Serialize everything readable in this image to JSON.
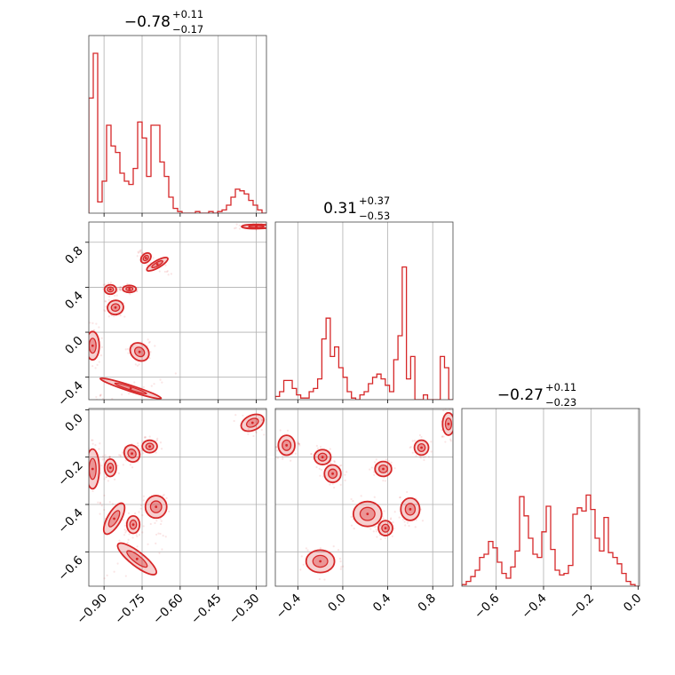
{
  "chart_data": {
    "type": "corner",
    "color": "#d62728",
    "grid": true,
    "parameters": [
      {
        "title": "−0.78",
        "plus": "+0.11",
        "minus": "−0.17",
        "range": [
          -0.96,
          -0.26
        ],
        "ticks": [
          -0.9,
          -0.75,
          -0.6,
          -0.45,
          -0.3
        ],
        "tick_labels": [
          "−0.90",
          "−0.75",
          "−0.60",
          "−0.45",
          "−0.30"
        ]
      },
      {
        "title": "0.31",
        "plus": "+0.37",
        "minus": "−0.53",
        "range": [
          -0.6,
          0.98
        ],
        "ticks": [
          -0.4,
          0.0,
          0.4,
          0.8
        ],
        "tick_labels": [
          "−0.4",
          "0.0",
          "0.4",
          "0.8"
        ]
      },
      {
        "title": "−0.27",
        "plus": "+0.11",
        "minus": "−0.23",
        "range": [
          -0.745,
          0.005
        ],
        "ticks": [
          -0.6,
          -0.4,
          -0.2,
          0.0
        ],
        "tick_labels": [
          "−0.6",
          "−0.4",
          "−0.2",
          "0.0"
        ]
      }
    ],
    "histograms": [
      [
        0.72,
        1.0,
        0.07,
        0.2,
        0.55,
        0.42,
        0.38,
        0.25,
        0.2,
        0.18,
        0.28,
        0.57,
        0.47,
        0.23,
        0.55,
        0.55,
        0.32,
        0.23,
        0.1,
        0.03,
        0.01,
        0.0,
        0.0,
        0.0,
        0.01,
        0.0,
        0.0,
        0.01,
        0.0,
        0.01,
        0.02,
        0.05,
        0.1,
        0.15,
        0.14,
        0.12,
        0.08,
        0.05,
        0.02,
        0.0
      ],
      [
        0.02,
        0.05,
        0.12,
        0.12,
        0.07,
        0.03,
        0.01,
        0.01,
        0.05,
        0.07,
        0.13,
        0.38,
        0.51,
        0.27,
        0.33,
        0.2,
        0.14,
        0.05,
        0.01,
        0.0,
        0.03,
        0.05,
        0.1,
        0.14,
        0.16,
        0.13,
        0.09,
        0.05,
        0.25,
        0.4,
        0.83,
        0.13,
        0.27,
        0.0,
        0.0,
        0.03,
        0.0,
        0.0,
        0.0,
        0.27,
        0.2,
        0.0
      ],
      [
        0.01,
        0.03,
        0.06,
        0.1,
        0.18,
        0.2,
        0.28,
        0.24,
        0.15,
        0.08,
        0.05,
        0.12,
        0.22,
        0.56,
        0.44,
        0.3,
        0.2,
        0.18,
        0.34,
        0.5,
        0.23,
        0.1,
        0.07,
        0.08,
        0.13,
        0.45,
        0.49,
        0.47,
        0.57,
        0.48,
        0.3,
        0.22,
        0.43,
        0.21,
        0.18,
        0.14,
        0.08,
        0.03,
        0.01,
        0.0
      ]
    ],
    "pairs": [
      {
        "x": 0,
        "y": 1,
        "blobs": [
          {
            "c": [
              -0.735,
              0.66
            ],
            "r": [
              0.022,
              0.035
            ],
            "rot": 45
          },
          {
            "c": [
              -0.69,
              0.605
            ],
            "r": [
              0.045,
              0.03
            ],
            "rot": 30
          },
          {
            "c": [
              -0.875,
              0.38
            ],
            "r": [
              0.022,
              0.04
            ],
            "rot": 0
          },
          {
            "c": [
              -0.8,
              0.385
            ],
            "r": [
              0.025,
              0.03
            ],
            "rot": 0
          },
          {
            "c": [
              -0.855,
              0.22
            ],
            "r": [
              0.03,
              0.06
            ],
            "rot": 10
          },
          {
            "c": [
              -0.945,
              -0.12
            ],
            "r": [
              0.025,
              0.12
            ],
            "rot": 0
          },
          {
            "c": [
              -0.76,
              -0.175
            ],
            "r": [
              0.038,
              0.07
            ],
            "rot": -40
          },
          {
            "c": [
              -0.795,
              -0.5
            ],
            "r": [
              0.12,
              0.025
            ],
            "rot": -18
          },
          {
            "c": [
              -0.3,
              0.94
            ],
            "r": [
              0.055,
              0.018
            ],
            "rot": 0
          }
        ]
      },
      {
        "x": 0,
        "y": 2,
        "blobs": [
          {
            "c": [
              -0.315,
              -0.055
            ],
            "r": [
              0.045,
              0.03
            ],
            "rot": 25
          },
          {
            "c": [
              -0.79,
              -0.185
            ],
            "r": [
              0.028,
              0.035
            ],
            "rot": 30
          },
          {
            "c": [
              -0.72,
              -0.155
            ],
            "r": [
              0.028,
              0.025
            ],
            "rot": 0
          },
          {
            "c": [
              -0.875,
              -0.245
            ],
            "r": [
              0.022,
              0.035
            ],
            "rot": 0
          },
          {
            "c": [
              -0.945,
              -0.25
            ],
            "r": [
              0.025,
              0.08
            ],
            "rot": 0
          },
          {
            "c": [
              -0.695,
              -0.41
            ],
            "r": [
              0.04,
              0.045
            ],
            "rot": 0
          },
          {
            "c": [
              -0.785,
              -0.485
            ],
            "r": [
              0.024,
              0.035
            ],
            "rot": 0
          },
          {
            "c": [
              -0.86,
              -0.46
            ],
            "r": [
              0.025,
              0.07
            ],
            "rot": -30
          },
          {
            "c": [
              -0.77,
              -0.63
            ],
            "r": [
              0.09,
              0.028
            ],
            "rot": -38
          }
        ]
      },
      {
        "x": 1,
        "y": 2,
        "blobs": [
          {
            "c": [
              -0.5,
              -0.15
            ],
            "r": [
              0.07,
              0.04
            ],
            "rot": 0
          },
          {
            "c": [
              -0.18,
              -0.2
            ],
            "r": [
              0.07,
              0.03
            ],
            "rot": 0
          },
          {
            "c": [
              -0.09,
              -0.27
            ],
            "r": [
              0.07,
              0.035
            ],
            "rot": 0
          },
          {
            "c": [
              0.36,
              -0.25
            ],
            "r": [
              0.07,
              0.03
            ],
            "rot": 0
          },
          {
            "c": [
              0.7,
              -0.16
            ],
            "r": [
              0.06,
              0.03
            ],
            "rot": 0
          },
          {
            "c": [
              0.94,
              -0.06
            ],
            "r": [
              0.05,
              0.045
            ],
            "rot": 0
          },
          {
            "c": [
              0.22,
              -0.44
            ],
            "r": [
              0.12,
              0.05
            ],
            "rot": 0
          },
          {
            "c": [
              0.38,
              -0.5
            ],
            "r": [
              0.06,
              0.03
            ],
            "rot": 0
          },
          {
            "c": [
              0.6,
              -0.42
            ],
            "r": [
              0.08,
              0.045
            ],
            "rot": 0
          },
          {
            "c": [
              -0.2,
              -0.64
            ],
            "r": [
              0.12,
              0.045
            ],
            "rot": 0
          }
        ]
      }
    ]
  }
}
